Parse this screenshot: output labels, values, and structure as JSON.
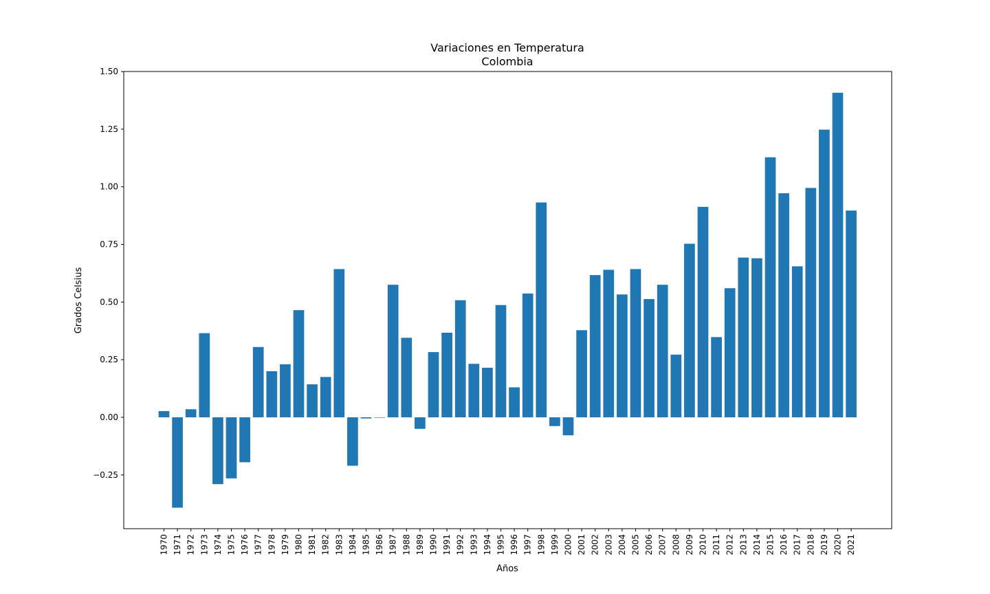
{
  "chart_data": {
    "type": "bar",
    "title": "Variaciones en Temperatura",
    "subtitle": "Colombia",
    "xlabel": "Años",
    "ylabel": "Grados Celsius",
    "ylim": [
      -0.48,
      1.5
    ],
    "yticks": [
      "1.50",
      "1.25",
      "1.00",
      "0.75",
      "0.50",
      "0.25",
      "0.00",
      "−0.25"
    ],
    "ytick_values": [
      1.5,
      1.25,
      1.0,
      0.75,
      0.5,
      0.25,
      0.0,
      -0.25
    ],
    "bar_color": "#1f77b4",
    "grid": false,
    "legend": "none",
    "categories": [
      "1970",
      "1971",
      "1972",
      "1973",
      "1974",
      "1975",
      "1976",
      "1977",
      "1978",
      "1979",
      "1980",
      "1981",
      "1982",
      "1983",
      "1984",
      "1985",
      "1986",
      "1987",
      "1988",
      "1989",
      "1990",
      "1991",
      "1992",
      "1993",
      "1994",
      "1995",
      "1996",
      "1997",
      "1998",
      "1999",
      "2000",
      "2001",
      "2002",
      "2003",
      "2004",
      "2005",
      "2006",
      "2007",
      "2008",
      "2009",
      "2010",
      "2011",
      "2012",
      "2013",
      "2014",
      "2015",
      "2016",
      "2017",
      "2018",
      "2019",
      "2020",
      "2021"
    ],
    "values": [
      0.027,
      -0.392,
      0.035,
      0.365,
      -0.29,
      -0.265,
      -0.195,
      0.305,
      0.2,
      0.23,
      0.465,
      0.143,
      0.175,
      0.643,
      -0.21,
      -0.005,
      -0.002,
      0.575,
      0.345,
      -0.05,
      0.283,
      0.367,
      0.508,
      0.232,
      0.215,
      0.487,
      0.13,
      0.537,
      0.932,
      -0.038,
      -0.078,
      0.378,
      0.617,
      0.64,
      0.533,
      0.643,
      0.513,
      0.575,
      0.272,
      0.753,
      0.913,
      0.348,
      0.56,
      0.693,
      0.69,
      1.128,
      0.972,
      0.655,
      0.995,
      1.248,
      1.408,
      0.897
    ]
  }
}
